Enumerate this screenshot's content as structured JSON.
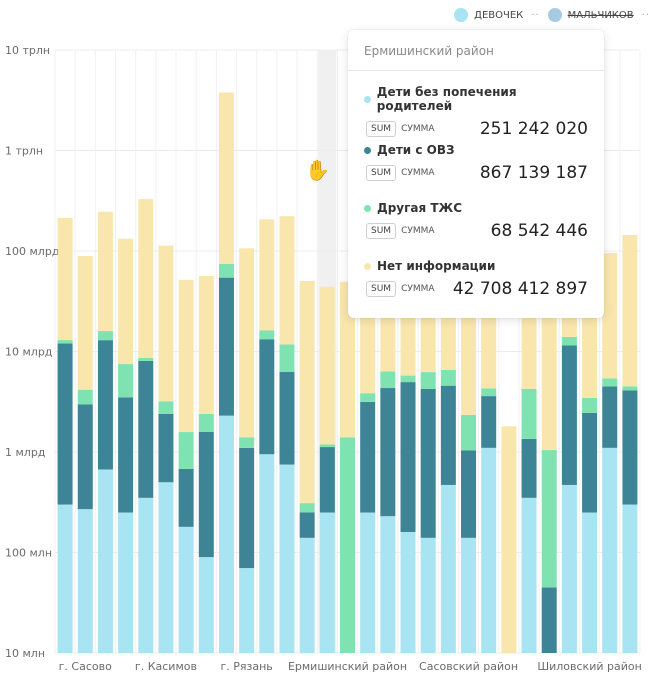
{
  "legend": {
    "items": [
      {
        "label": "ДЕВОЧЕК",
        "color": "#a9e4f3",
        "active": true
      },
      {
        "label": "МАЛЬЧИКОВ",
        "color": "#a6cbe0",
        "active": false
      }
    ]
  },
  "tooltip": {
    "title": "Ермишинский район",
    "rows": [
      {
        "category": "Дети без попечения родителей",
        "badge": "SUM",
        "agg": "СУММА",
        "value": "251 242 020",
        "color": "#a9e4f3"
      },
      {
        "category": "Дети с ОВЗ",
        "badge": "SUM",
        "agg": "СУММА",
        "value": "867 139 187",
        "color": "#3d8596"
      },
      {
        "category": "Другая ТЖС",
        "badge": "SUM",
        "agg": "СУММА",
        "value": "68 542 446",
        "color": "#7ee3b1"
      },
      {
        "category": "Нет информации",
        "badge": "SUM",
        "agg": "СУММА",
        "value": "42 708 412 897",
        "color": "#f9e6ad"
      }
    ]
  },
  "chart_data": {
    "type": "bar",
    "stacked": true,
    "y_scale": "log",
    "ylim": [
      10000000,
      10000000000000
    ],
    "y_ticks": [
      {
        "value": 10000000,
        "label": "10 млн"
      },
      {
        "value": 100000000,
        "label": "100 млн"
      },
      {
        "value": 1000000000,
        "label": "1 млрд"
      },
      {
        "value": 10000000000,
        "label": "10 млрд"
      },
      {
        "value": 100000000000,
        "label": "100 млрд"
      },
      {
        "value": 1000000000000,
        "label": "1 трлн"
      },
      {
        "value": 10000000000000,
        "label": "10 трлн"
      }
    ],
    "x_tick_labels": [
      "г. Сасово",
      "г. Касимов",
      "г. Рязань",
      "Ермишинский район",
      "Сасовский район",
      "Шиловский район"
    ],
    "x_tick_positions": [
      1,
      5,
      9,
      14,
      20,
      26
    ],
    "hovered_index": 13,
    "grid": true,
    "legend_position": "top-right",
    "series": [
      {
        "name": "Дети без попечения родителей",
        "color": "#a9e4f3",
        "values": [
          0.3,
          0.27,
          0.67,
          0.25,
          0.35,
          0.5,
          0.18,
          0.09,
          2.3,
          0.07,
          0.95,
          0.75,
          0.14,
          0.25,
          0,
          0.25,
          0.23,
          0.16,
          0.14,
          0.47,
          0.14,
          1.1,
          0,
          0.35,
          0,
          0.47,
          0.25,
          1.1,
          0.3
        ]
      },
      {
        "name": "Дети с ОВЗ",
        "color": "#3d8596",
        "values": [
          11.7,
          2.7,
          12.3,
          3.25,
          7.7,
          1.9,
          0.5,
          1.5,
          52,
          1.03,
          12.3,
          5.5,
          0.11,
          0.87,
          0,
          2.9,
          4.1,
          4.8,
          4.1,
          4.1,
          0.9,
          2.5,
          0,
          1.0,
          0.045,
          11,
          2.2,
          3.4,
          3.8
        ]
      },
      {
        "name": "Другая ТЖС",
        "color": "#7ee3b1",
        "values": [
          1.0,
          1.2,
          3.0,
          4.0,
          0.6,
          0.8,
          0.9,
          0.8,
          20,
          0.3,
          3.0,
          5.5,
          0.06,
          0.07,
          1.4,
          0.7,
          2.0,
          0.8,
          2.0,
          2.0,
          1.3,
          0.7,
          0,
          2.9,
          1.0,
          2.5,
          1.0,
          0.9,
          0.4
        ]
      },
      {
        "name": "Нет информации",
        "color": "#f9e6ad",
        "values": [
          200,
          85,
          230,
          125,
          320,
          110,
          50,
          54,
          3700,
          105,
          190,
          210,
          50,
          42.7,
          48,
          92,
          70,
          80,
          120,
          84,
          150,
          130,
          1.8,
          75,
          70,
          118,
          72,
          90,
          140
        ]
      }
    ],
    "segment_unit": 1000000000
  }
}
